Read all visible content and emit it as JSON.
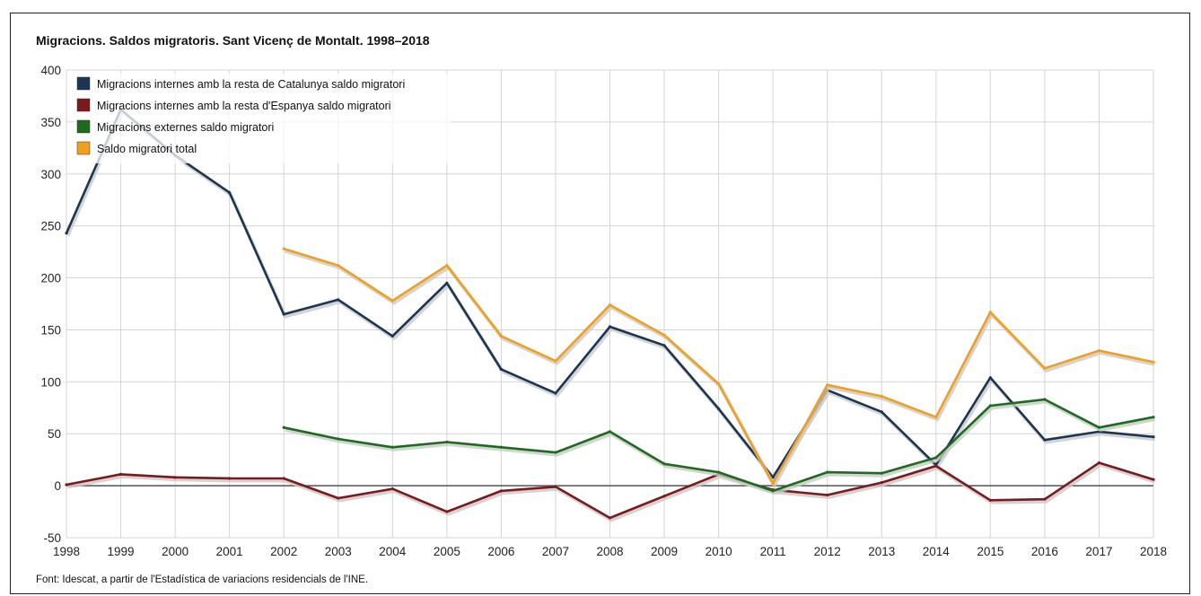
{
  "chart_data": {
    "type": "line",
    "title": "Migracions. Saldos migratoris. Sant Vicenç de Montalt. 1998–2018",
    "source": "Font: Idescat, a partir de l'Estadística de variacions residencials de l'INE.",
    "x": [
      "1998",
      "1999",
      "2000",
      "2001",
      "2002",
      "2003",
      "2004",
      "2005",
      "2006",
      "2007",
      "2008",
      "2009",
      "2010",
      "2011",
      "2012",
      "2013",
      "2014",
      "2015",
      "2016",
      "2017",
      "2018"
    ],
    "ylim": [
      -50,
      400
    ],
    "yticks": [
      -50,
      0,
      50,
      100,
      150,
      200,
      250,
      300,
      350,
      400
    ],
    "grid": true,
    "legend_position": "top-left",
    "series": [
      {
        "name": "Migracions internes amb la resta de Catalunya saldo migratori",
        "color": "#1b3553",
        "values": [
          243,
          362,
          318,
          282,
          165,
          179,
          144,
          195,
          112,
          89,
          153,
          135,
          74,
          8,
          92,
          71,
          20,
          104,
          44,
          52,
          47
        ]
      },
      {
        "name": "Migracions internes amb la resta d'Espanya saldo migratori",
        "color": "#7a1a1c",
        "values": [
          1,
          11,
          8,
          7,
          7,
          -12,
          -3,
          -25,
          -5,
          -1,
          -31,
          -10,
          11,
          -4,
          -9,
          3,
          19,
          -14,
          -13,
          22,
          6
        ]
      },
      {
        "name": "Migracions externes saldo migratori",
        "color": "#1e6b1e",
        "values": [
          null,
          null,
          null,
          null,
          56,
          45,
          37,
          42,
          37,
          32,
          52,
          21,
          13,
          -5,
          13,
          12,
          27,
          77,
          83,
          56,
          66
        ]
      },
      {
        "name": "Saldo migratori total",
        "color": "#f0a020",
        "values": [
          null,
          null,
          null,
          null,
          228,
          212,
          178,
          212,
          144,
          120,
          174,
          145,
          98,
          2,
          97,
          86,
          66,
          167,
          113,
          130,
          119
        ]
      }
    ]
  }
}
